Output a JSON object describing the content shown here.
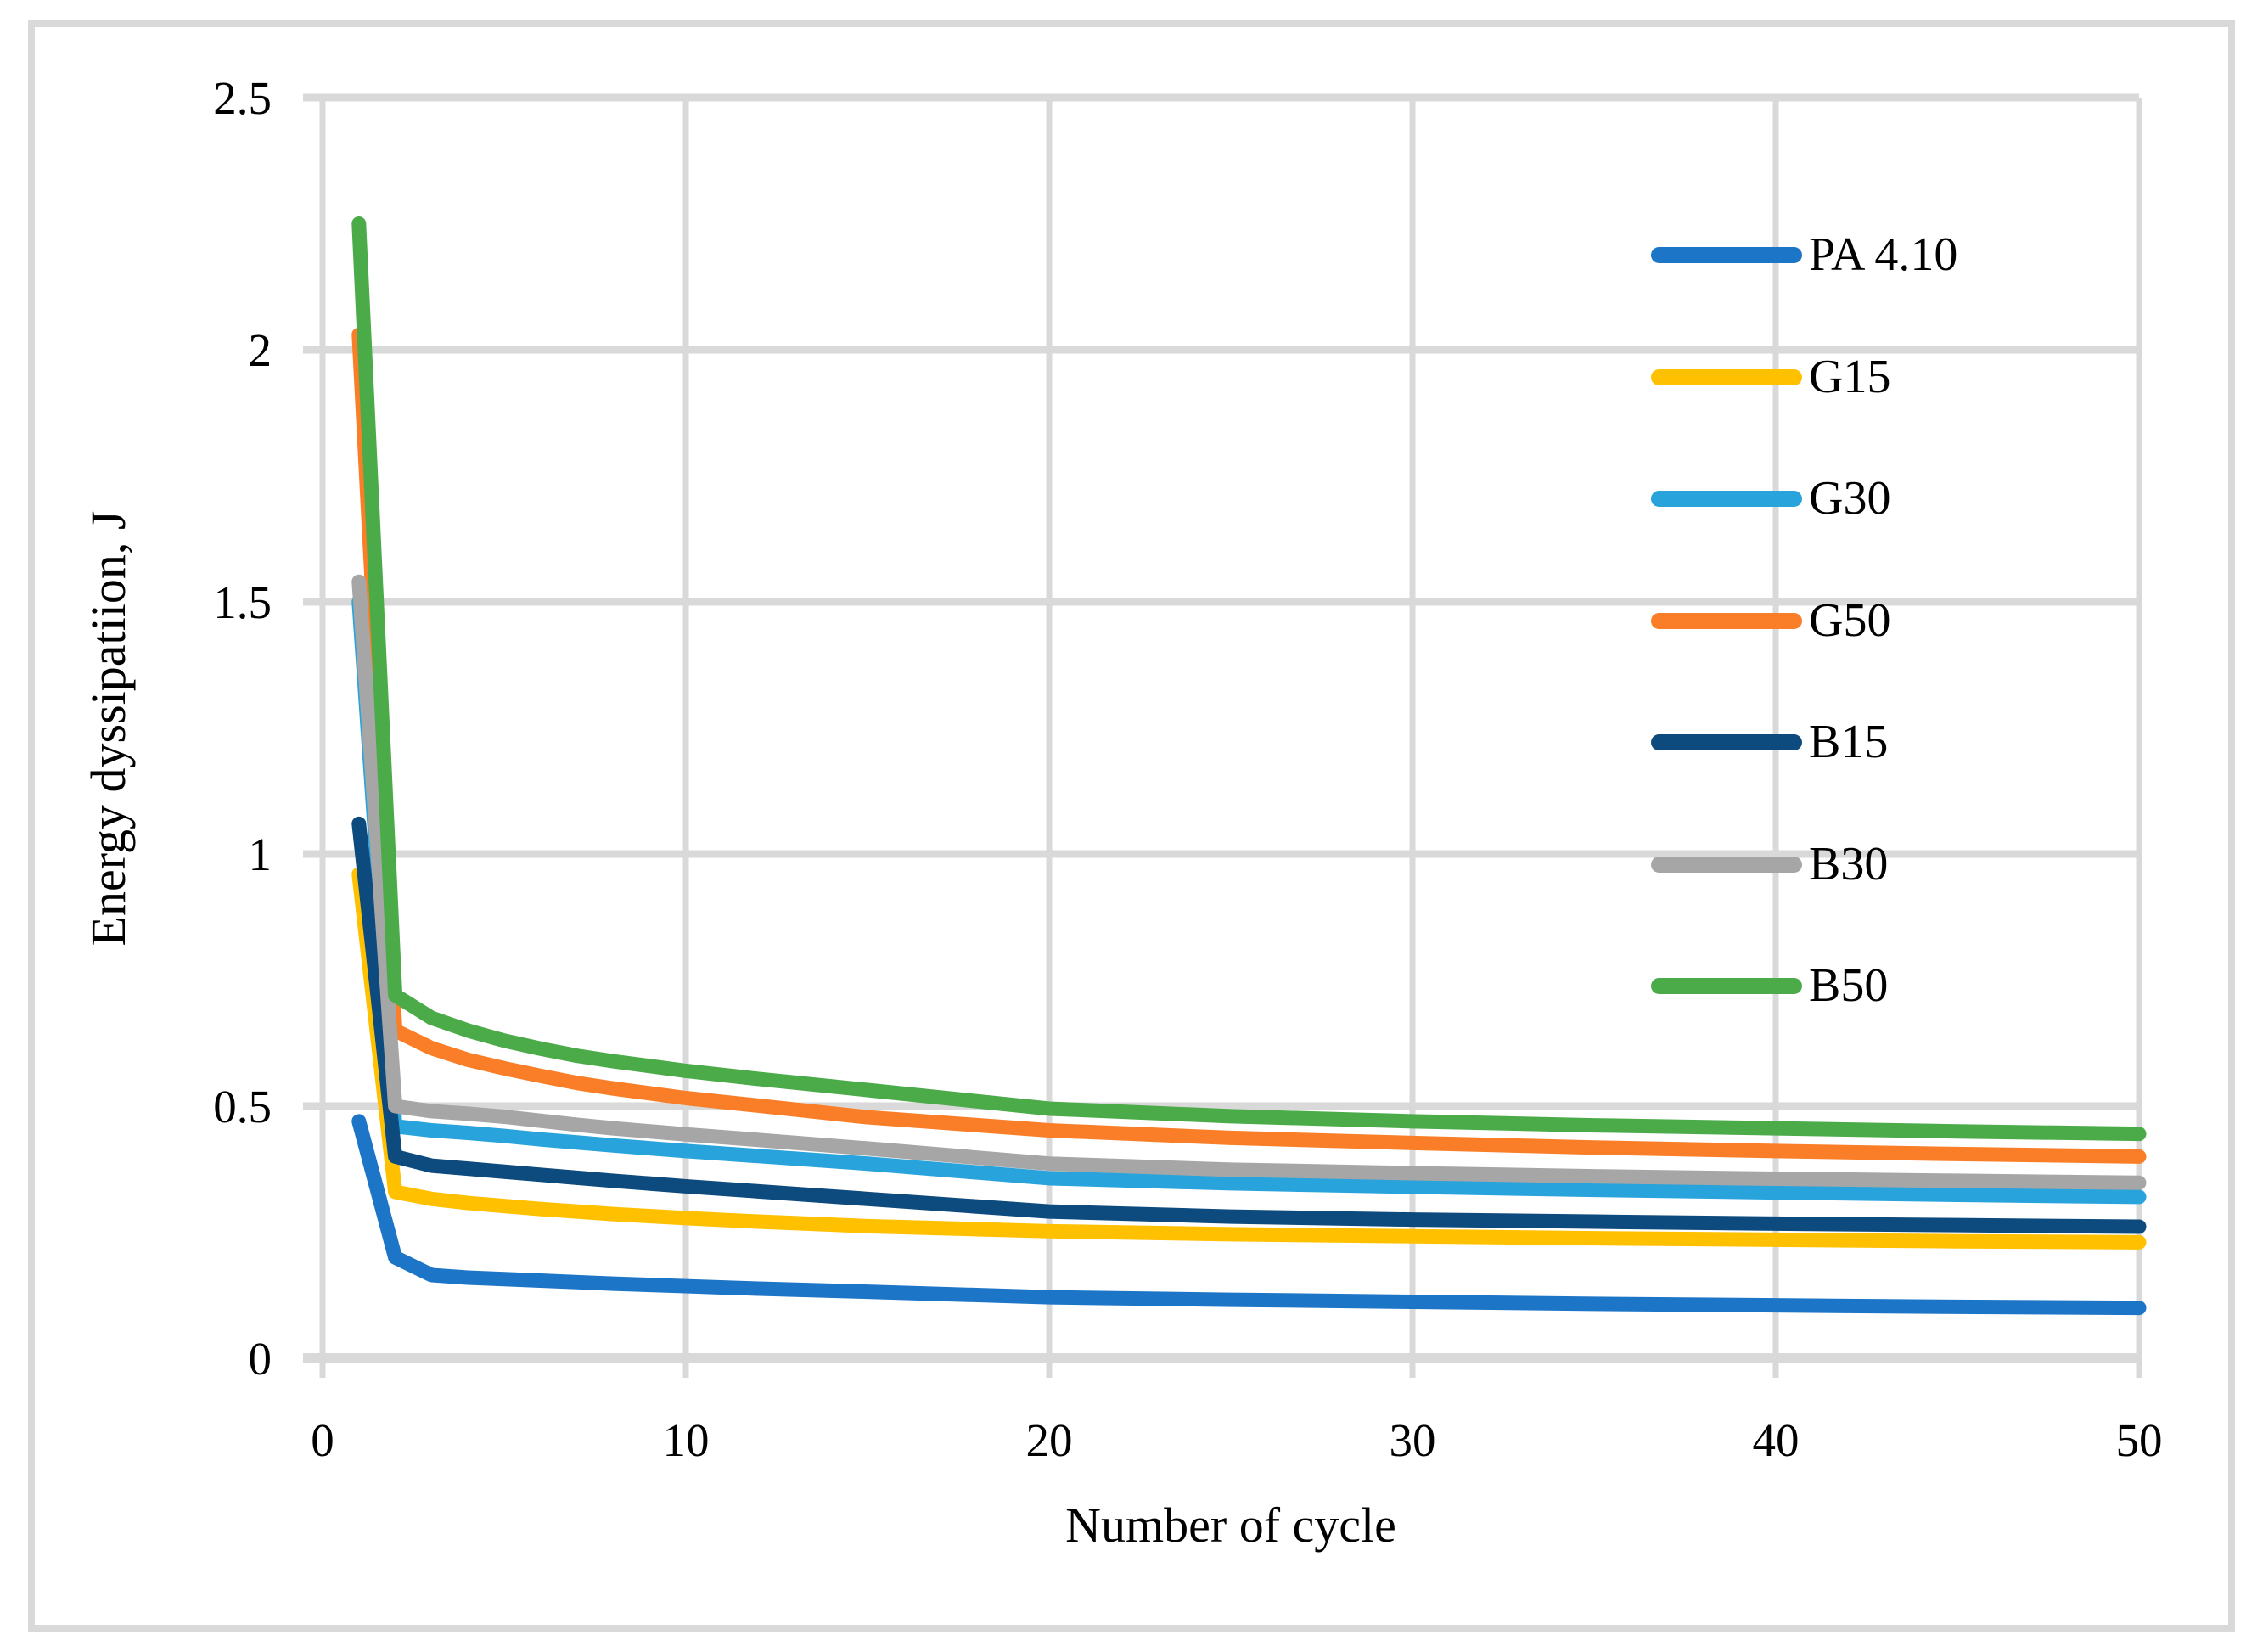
{
  "figure": {
    "background": "#FFFFFF",
    "border_color": "#D9D9D9"
  },
  "chart_data": {
    "type": "line",
    "title": "",
    "xlabel": "Number of cycle",
    "ylabel": "Energy dyssipatiion, J",
    "xlim": [
      0,
      50
    ],
    "ylim": [
      0,
      2.5
    ],
    "grid": true,
    "grid_color": "#D9D9D9",
    "text_color": "#000000",
    "legend_position": "inside-right",
    "x_ticks": [
      0,
      10,
      20,
      30,
      40,
      50
    ],
    "x_tick_labels": [
      "0",
      "10",
      "20",
      "30",
      "40",
      "50"
    ],
    "y_ticks": [
      0,
      0.5,
      1,
      1.5,
      2,
      2.5
    ],
    "y_tick_labels": [
      "0",
      "0.5",
      "1",
      "1.5",
      "2",
      "2.5"
    ],
    "x": [
      1,
      2,
      3,
      4,
      5,
      6,
      7,
      8,
      10,
      12,
      15,
      20,
      25,
      30,
      35,
      40,
      45,
      50
    ],
    "series": [
      {
        "name": "PA 4.10",
        "color": "#1C75C6",
        "values": [
          0.47,
          0.2,
          0.165,
          0.16,
          0.157,
          0.154,
          0.151,
          0.148,
          0.143,
          0.138,
          0.132,
          0.121,
          0.116,
          0.112,
          0.108,
          0.105,
          0.102,
          0.1
        ]
      },
      {
        "name": "G15",
        "color": "#FFC000",
        "values": [
          0.96,
          0.33,
          0.316,
          0.308,
          0.302,
          0.296,
          0.291,
          0.286,
          0.278,
          0.271,
          0.262,
          0.252,
          0.246,
          0.242,
          0.238,
          0.235,
          0.232,
          0.23
        ]
      },
      {
        "name": "G30",
        "color": "#29A3DC",
        "values": [
          1.5,
          0.46,
          0.452,
          0.447,
          0.441,
          0.434,
          0.428,
          0.422,
          0.411,
          0.401,
          0.386,
          0.357,
          0.347,
          0.34,
          0.334,
          0.329,
          0.324,
          0.32
        ]
      },
      {
        "name": "G50",
        "color": "#F97E27",
        "values": [
          2.03,
          0.65,
          0.615,
          0.592,
          0.575,
          0.56,
          0.546,
          0.535,
          0.516,
          0.501,
          0.478,
          0.452,
          0.437,
          0.427,
          0.418,
          0.411,
          0.405,
          0.4
        ]
      },
      {
        "name": "B15",
        "color": "#0D4A7D",
        "values": [
          1.06,
          0.4,
          0.382,
          0.376,
          0.37,
          0.364,
          0.358,
          0.352,
          0.341,
          0.331,
          0.316,
          0.291,
          0.281,
          0.275,
          0.271,
          0.267,
          0.264,
          0.261
        ]
      },
      {
        "name": "B30",
        "color": "#A6A6A6",
        "values": [
          1.54,
          0.5,
          0.49,
          0.485,
          0.479,
          0.471,
          0.463,
          0.456,
          0.444,
          0.433,
          0.416,
          0.386,
          0.374,
          0.367,
          0.361,
          0.356,
          0.352,
          0.348
        ]
      },
      {
        "name": "B50",
        "color": "#4BAB49",
        "values": [
          2.25,
          0.72,
          0.675,
          0.65,
          0.63,
          0.614,
          0.6,
          0.589,
          0.57,
          0.554,
          0.532,
          0.495,
          0.48,
          0.47,
          0.462,
          0.456,
          0.45,
          0.445
        ]
      }
    ]
  }
}
